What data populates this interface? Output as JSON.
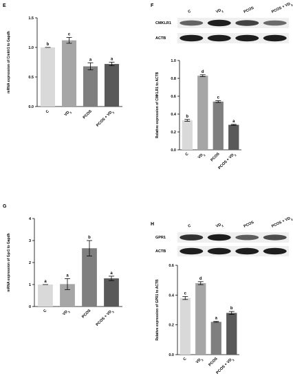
{
  "panels": [
    {
      "letter": "E",
      "ylabel": "mRNA expression of Cmklr1 to Gapdh",
      "ticks": [
        "0.0",
        "0.5",
        "1.0",
        "1.5"
      ],
      "ylim": [
        0,
        1.5
      ],
      "values": [
        1.0,
        1.12,
        0.68,
        0.72
      ],
      "errors": [
        0.0,
        0.05,
        0.06,
        0.03
      ],
      "sig": [
        "b",
        "c",
        "a",
        "a"
      ],
      "colors": [
        "#d9d9d9",
        "#a6a6a6",
        "#7f7f7f",
        "#595959"
      ]
    },
    {
      "letter": "F",
      "ylabel": "Relative expression of CMKLR1 to ACTB",
      "ticks": [
        "0.0",
        "0.2",
        "0.4",
        "0.6",
        "0.8",
        "1.0"
      ],
      "ylim": [
        0,
        1.0
      ],
      "values": [
        0.33,
        0.83,
        0.54,
        0.28
      ],
      "errors": [
        0.01,
        0.01,
        0.01,
        0.005
      ],
      "sig": [
        "b",
        "d",
        "c",
        "a"
      ],
      "colors": [
        "#d9d9d9",
        "#a6a6a6",
        "#7f7f7f",
        "#595959"
      ],
      "blot": {
        "lanes": [
          "C",
          "VD3",
          "PCOS",
          "PCOS + VD3"
        ],
        "rows": [
          "CMKLR1",
          "ACTB"
        ]
      }
    },
    {
      "letter": "G",
      "ylabel": "mRNA expression of Gpr1 to Gapdh",
      "ticks": [
        "0",
        "1",
        "2",
        "3",
        "4"
      ],
      "ylim": [
        0,
        4
      ],
      "values": [
        1.0,
        1.02,
        2.65,
        1.28
      ],
      "errors": [
        0.0,
        0.25,
        0.35,
        0.1
      ],
      "sig": [
        "a",
        "a",
        "b",
        "a"
      ],
      "colors": [
        "#d9d9d9",
        "#a6a6a6",
        "#7f7f7f",
        "#595959"
      ]
    },
    {
      "letter": "H",
      "ylabel": "Relative expression of GPR1 to ACTB",
      "ticks": [
        "0.0",
        "0.2",
        "0.4",
        "0.6"
      ],
      "ylim": [
        0,
        0.6
      ],
      "values": [
        0.38,
        0.48,
        0.22,
        0.28
      ],
      "errors": [
        0.01,
        0.01,
        0.003,
        0.01
      ],
      "sig": [
        "c",
        "d",
        "a",
        "b"
      ],
      "colors": [
        "#d9d9d9",
        "#a6a6a6",
        "#7f7f7f",
        "#595959"
      ],
      "blot": {
        "lanes": [
          "C",
          "VD3",
          "PCOS",
          "PCOS + VD3"
        ],
        "rows": [
          "GPR1",
          "ACTB"
        ]
      }
    }
  ],
  "categories": [
    "C",
    "VD",
    "PCOS",
    "PCOS + VD"
  ],
  "subscript": "3",
  "chart_data": [
    {
      "type": "bar",
      "panel": "E",
      "categories": [
        "C",
        "VD3",
        "PCOS",
        "PCOS + VD3"
      ],
      "values": [
        1.0,
        1.12,
        0.68,
        0.72
      ],
      "errors": [
        0.0,
        0.05,
        0.06,
        0.03
      ],
      "ylabel": "mRNA expression of Cmklr1 to Gapdh",
      "ylim": [
        0,
        1.5
      ]
    },
    {
      "type": "bar",
      "panel": "F",
      "categories": [
        "C",
        "VD3",
        "PCOS",
        "PCOS + VD3"
      ],
      "values": [
        0.33,
        0.83,
        0.54,
        0.28
      ],
      "errors": [
        0.01,
        0.01,
        0.01,
        0.005
      ],
      "ylabel": "Relative expression of CMKLR1 to ACTB",
      "ylim": [
        0,
        1.0
      ]
    },
    {
      "type": "bar",
      "panel": "G",
      "categories": [
        "C",
        "VD3",
        "PCOS",
        "PCOS + VD3"
      ],
      "values": [
        1.0,
        1.02,
        2.65,
        1.28
      ],
      "errors": [
        0.0,
        0.25,
        0.35,
        0.1
      ],
      "ylabel": "mRNA expression of Gpr1 to Gapdh",
      "ylim": [
        0,
        4
      ]
    },
    {
      "type": "bar",
      "panel": "H",
      "categories": [
        "C",
        "VD3",
        "PCOS",
        "PCOS + VD3"
      ],
      "values": [
        0.38,
        0.48,
        0.22,
        0.28
      ],
      "errors": [
        0.01,
        0.01,
        0.003,
        0.01
      ],
      "ylabel": "Relative expression of GPR1 to ACTB",
      "ylim": [
        0,
        0.6
      ]
    }
  ]
}
